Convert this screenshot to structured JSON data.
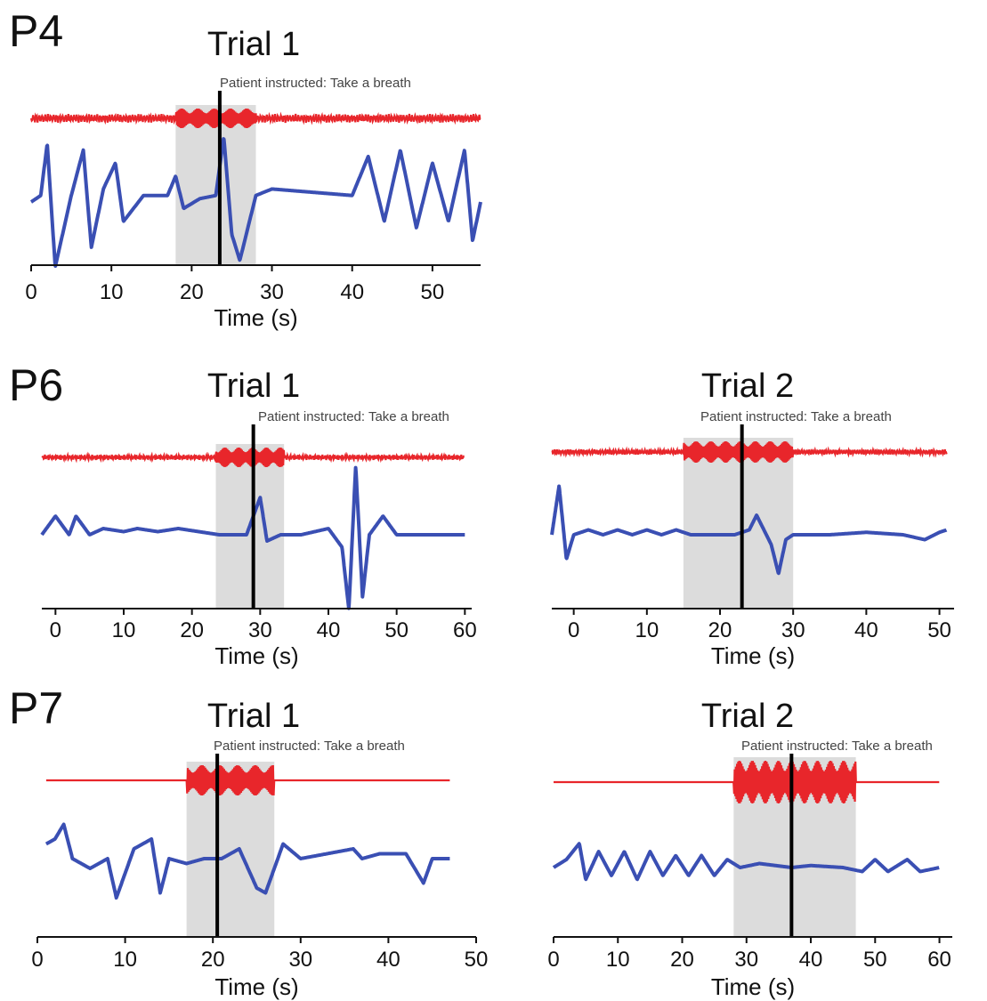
{
  "figure": {
    "row_labels": [
      "P4",
      "P6",
      "P7"
    ]
  },
  "colors": {
    "upper_trace": "#e8262b",
    "lower_trace": "#3a4fb3",
    "instruction_line": "#000000",
    "shaded_window": "#dcdcdc"
  },
  "chart_data": [
    {
      "type": "line",
      "patient": "P4",
      "title": "Trial 1",
      "annotation": "Patient instructed: Take a breath",
      "xlabel": "Time (s)",
      "ylabel": "",
      "xlim": [
        0,
        56
      ],
      "xticks": [
        0,
        10,
        20,
        30,
        40,
        50
      ],
      "instruction_time": 23.5,
      "shaded_window": [
        18,
        28
      ],
      "lower_trace_key_points": {
        "x": [
          0,
          1.2,
          2,
          3,
          5,
          6.5,
          7.5,
          9,
          10.5,
          11.5,
          14,
          17,
          18,
          19,
          21,
          23,
          24,
          25,
          26,
          28,
          30,
          40,
          42,
          44,
          46,
          48,
          50,
          52,
          54,
          55,
          56
        ],
        "y": [
          0,
          0.1,
          0.9,
          -1.0,
          0.1,
          0.8,
          -0.7,
          0.2,
          0.6,
          -0.3,
          0.1,
          0.1,
          0.4,
          -0.1,
          0.05,
          0.1,
          1.0,
          -0.5,
          -0.9,
          0.1,
          0.2,
          0.1,
          0.7,
          -0.3,
          0.8,
          -0.4,
          0.6,
          -0.3,
          0.8,
          -0.6,
          0.0
        ]
      }
    },
    {
      "type": "line",
      "patient": "P6",
      "title": "Trial 1",
      "annotation": "Patient instructed: Take a breath",
      "xlabel": "Time (s)",
      "ylabel": "",
      "xlim": [
        -2,
        61
      ],
      "xticks": [
        0,
        10,
        20,
        30,
        40,
        50,
        60
      ],
      "instruction_time": 29,
      "shaded_window": [
        23.5,
        33.5
      ],
      "lower_trace_key_points": {
        "x": [
          -2,
          0,
          2,
          3,
          5,
          7,
          10,
          12,
          15,
          18,
          21,
          24,
          28,
          30,
          31,
          33,
          36,
          40,
          42,
          43,
          44,
          45,
          46,
          48,
          50,
          55,
          60
        ],
        "y": [
          0,
          0.3,
          0.0,
          0.3,
          0.0,
          0.1,
          0.05,
          0.1,
          0.05,
          0.1,
          0.05,
          0.0,
          0.0,
          0.6,
          -0.1,
          0.0,
          0.0,
          0.1,
          -0.2,
          -1.2,
          1.1,
          -1.0,
          0.0,
          0.3,
          0.0,
          0.0,
          0.0
        ]
      }
    },
    {
      "type": "line",
      "patient": "P6",
      "title": "Trial 2",
      "annotation": "Patient instructed: Take a breath",
      "xlabel": "Time (s)",
      "ylabel": "",
      "xlim": [
        -3,
        52
      ],
      "xticks": [
        0,
        10,
        20,
        30,
        40,
        50
      ],
      "instruction_time": 23,
      "shaded_window": [
        15,
        30
      ],
      "lower_trace_key_points": {
        "x": [
          -3,
          -2,
          -1,
          0,
          2,
          4,
          6,
          8,
          10,
          12,
          14,
          16,
          18,
          20,
          22,
          24,
          25,
          27,
          28,
          29,
          30,
          35,
          40,
          45,
          48,
          50,
          51
        ],
        "y": [
          0,
          1.0,
          -0.5,
          0.0,
          0.1,
          0.0,
          0.1,
          0.0,
          0.1,
          0.0,
          0.1,
          0.0,
          0.0,
          0.0,
          0.0,
          0.1,
          0.4,
          -0.2,
          -0.8,
          -0.1,
          0.0,
          0.0,
          0.05,
          0.0,
          -0.1,
          0.05,
          0.1
        ]
      }
    },
    {
      "type": "line",
      "patient": "P7",
      "title": "Trial 1",
      "annotation": "Patient instructed: Take a breath",
      "xlabel": "Time (s)",
      "ylabel": "",
      "xlim": [
        0,
        50
      ],
      "xticks": [
        0,
        10,
        20,
        30,
        40,
        50
      ],
      "instruction_time": 20.5,
      "shaded_window": [
        17,
        27
      ],
      "lower_trace_key_points": {
        "x": [
          1,
          2,
          3,
          4,
          6,
          8,
          9,
          11,
          13,
          14,
          15,
          17,
          19,
          21,
          23,
          25,
          26,
          28,
          30,
          33,
          36,
          37,
          39,
          42,
          44,
          45,
          47
        ],
        "y": [
          0.3,
          0.4,
          0.7,
          0.0,
          -0.2,
          0.0,
          -0.8,
          0.2,
          0.4,
          -0.7,
          0.0,
          -0.1,
          0.0,
          0.0,
          0.2,
          -0.6,
          -0.7,
          0.3,
          0.0,
          0.1,
          0.2,
          0.0,
          0.1,
          0.1,
          -0.5,
          0.0,
          0.0
        ]
      }
    },
    {
      "type": "line",
      "patient": "P7",
      "title": "Trial 2",
      "annotation": "Patient instructed: Take a breath",
      "xlabel": "Time (s)",
      "ylabel": "",
      "xlim": [
        0,
        62
      ],
      "xticks": [
        0,
        10,
        20,
        30,
        40,
        50,
        60
      ],
      "instruction_time": 37,
      "shaded_window": [
        28,
        47
      ],
      "lower_trace_key_points": {
        "x": [
          0,
          2,
          4,
          5,
          7,
          9,
          11,
          13,
          15,
          17,
          19,
          21,
          23,
          25,
          27,
          29,
          32,
          37,
          40,
          45,
          48,
          50,
          52,
          55,
          57,
          60
        ],
        "y": [
          0,
          0.2,
          0.6,
          -0.3,
          0.4,
          -0.2,
          0.4,
          -0.3,
          0.4,
          -0.2,
          0.3,
          -0.2,
          0.3,
          -0.2,
          0.2,
          0.0,
          0.1,
          0.0,
          0.05,
          0.0,
          -0.1,
          0.2,
          -0.1,
          0.2,
          -0.1,
          0.0
        ]
      }
    }
  ]
}
